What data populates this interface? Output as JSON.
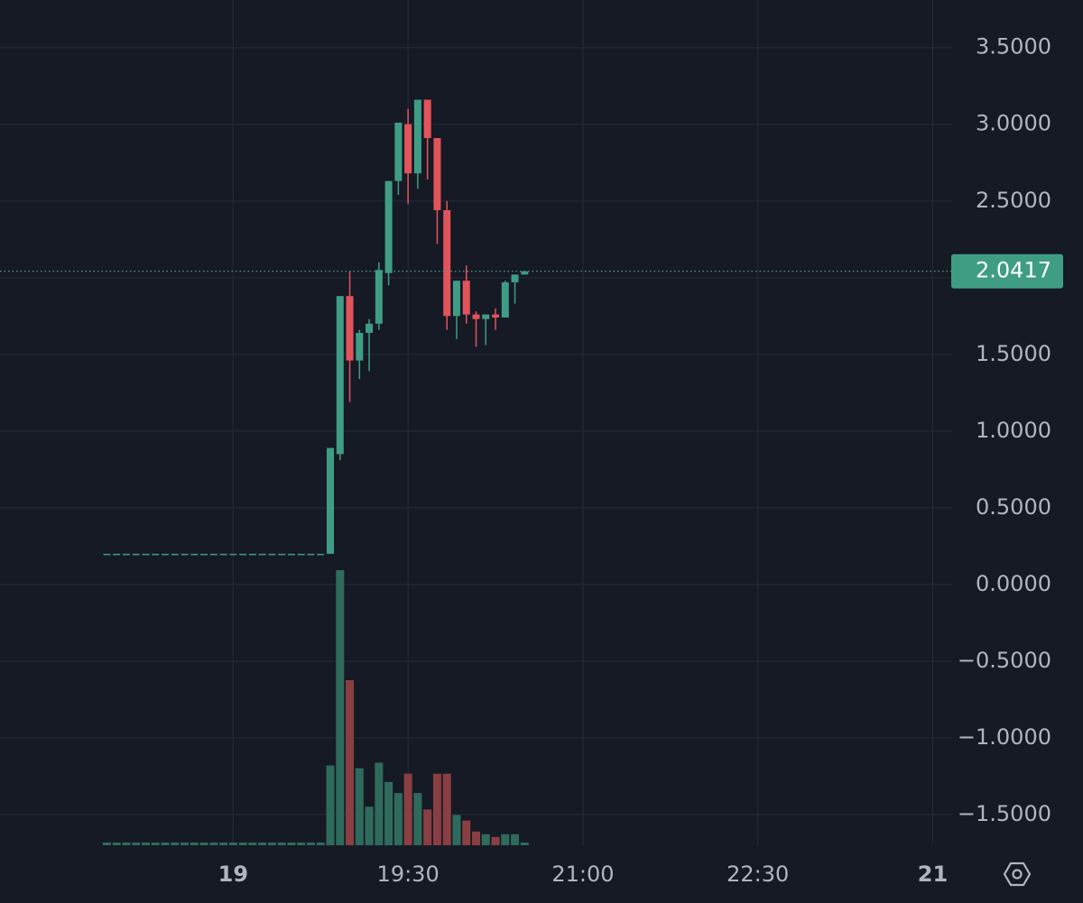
{
  "chart_data": {
    "type": "candlestick",
    "categories": [
      null,
      null,
      null,
      null,
      null,
      null,
      null,
      null,
      null,
      null,
      null,
      null,
      null,
      null,
      null,
      null,
      null,
      null,
      null,
      null,
      null,
      null,
      null,
      null,
      null,
      null,
      null,
      null,
      null,
      null,
      null,
      null,
      null,
      null,
      null,
      null,
      null,
      null,
      null,
      null,
      null,
      null,
      null,
      null
    ],
    "open": [
      0.2,
      0.2,
      0.2,
      0.2,
      0.2,
      0.2,
      0.2,
      0.2,
      0.2,
      0.2,
      0.2,
      0.2,
      0.2,
      0.2,
      0.2,
      0.2,
      0.2,
      0.2,
      0.2,
      0.2,
      0.2,
      0.2,
      0.2,
      0.2,
      0.85,
      1.88,
      1.46,
      1.64,
      1.7,
      2.03,
      2.63,
      3.0,
      2.68,
      3.16,
      2.91,
      2.44,
      1.75,
      1.98,
      1.76,
      1.73,
      1.76,
      1.74,
      1.97,
      2.02
    ],
    "high": [
      0.2,
      0.2,
      0.2,
      0.2,
      0.2,
      0.2,
      0.2,
      0.2,
      0.2,
      0.2,
      0.2,
      0.2,
      0.2,
      0.2,
      0.2,
      0.2,
      0.2,
      0.2,
      0.2,
      0.2,
      0.2,
      0.2,
      0.2,
      0.89,
      1.88,
      2.04,
      1.66,
      1.73,
      2.1,
      2.63,
      3.01,
      3.1,
      3.16,
      3.16,
      2.91,
      2.5,
      1.98,
      2.08,
      1.78,
      1.76,
      1.8,
      1.98,
      2.02,
      2.0417
    ],
    "low": [
      0.2,
      0.2,
      0.2,
      0.2,
      0.2,
      0.2,
      0.2,
      0.2,
      0.2,
      0.2,
      0.2,
      0.2,
      0.2,
      0.2,
      0.2,
      0.2,
      0.2,
      0.2,
      0.2,
      0.2,
      0.2,
      0.2,
      0.2,
      0.2,
      0.81,
      1.19,
      1.34,
      1.39,
      1.66,
      1.95,
      2.54,
      2.48,
      2.58,
      2.64,
      2.22,
      1.66,
      1.6,
      1.7,
      1.55,
      1.56,
      1.66,
      1.74,
      1.83,
      2.02
    ],
    "close": [
      0.2,
      0.2,
      0.2,
      0.2,
      0.2,
      0.2,
      0.2,
      0.2,
      0.2,
      0.2,
      0.2,
      0.2,
      0.2,
      0.2,
      0.2,
      0.2,
      0.2,
      0.2,
      0.2,
      0.2,
      0.2,
      0.2,
      0.2,
      0.89,
      1.88,
      1.46,
      1.64,
      1.7,
      2.05,
      2.63,
      3.01,
      2.68,
      3.16,
      2.91,
      2.44,
      1.75,
      1.98,
      1.76,
      1.73,
      1.76,
      1.74,
      1.97,
      2.02,
      2.0417
    ],
    "volume": [
      1,
      1,
      1,
      1,
      1,
      1,
      1,
      1,
      1,
      1,
      1,
      1,
      1,
      1,
      1,
      1,
      1,
      1,
      1,
      1,
      1,
      1,
      1,
      29,
      100,
      60,
      28,
      14,
      30,
      23,
      19,
      26,
      19,
      13,
      26,
      26,
      11,
      9,
      5,
      4,
      3,
      4,
      4,
      1
    ],
    "up_color": "#3f9d84",
    "down_color": "#e2545b",
    "volume_up_color": "#2f6b5c",
    "volume_down_color": "#8a3f43",
    "ylim": [
      -1.7,
      3.81
    ],
    "yticks": [
      {
        "value": 3.5,
        "label": "3.5000"
      },
      {
        "value": 3.0,
        "label": "3.0000"
      },
      {
        "value": 2.5,
        "label": "2.5000"
      },
      {
        "value": 2.0,
        "label": "2.0000"
      },
      {
        "value": 1.5,
        "label": "1.5000"
      },
      {
        "value": 1.0,
        "label": "1.0000"
      },
      {
        "value": 0.5,
        "label": "0.5000"
      },
      {
        "value": 0,
        "label": "0.0000"
      },
      {
        "value": -0.5,
        "label": "−0.5000"
      },
      {
        "value": -1.0,
        "label": "−1.0000"
      },
      {
        "value": -1.5,
        "label": "−1.5000"
      }
    ],
    "y2lim": [
      0,
      100
    ],
    "xlim": [
      -11,
      87
    ],
    "xticks": [
      {
        "value": 13,
        "label": "19"
      },
      {
        "value": 31,
        "label": "19:30"
      },
      {
        "value": 49,
        "label": "21:00"
      },
      {
        "value": 67,
        "label": "22:30"
      },
      {
        "value": 85,
        "label": "21"
      }
    ],
    "last_price": 2.0417,
    "grid": true
  }
}
